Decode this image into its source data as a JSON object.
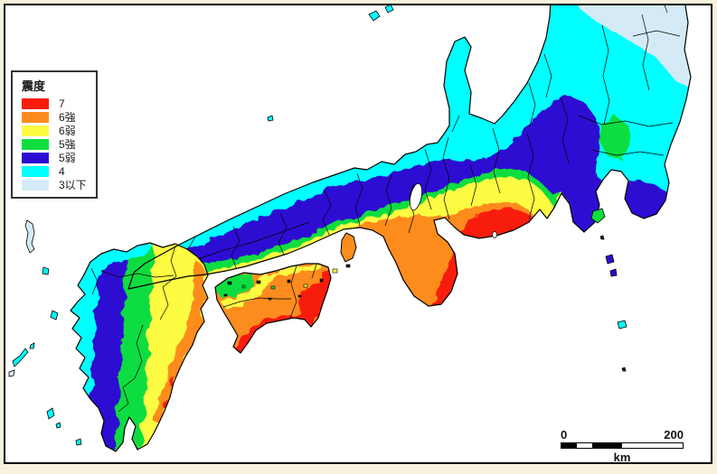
{
  "page": {
    "background_color": "#f8f2dd",
    "frame_border_color": "#000000",
    "sea_color": "#ffffff"
  },
  "legend": {
    "title": "震度",
    "items": [
      {
        "label": "7",
        "color": "#f81b0b"
      },
      {
        "label": "6強",
        "color": "#fd8c1f"
      },
      {
        "label": "6弱",
        "color": "#fdfb42"
      },
      {
        "label": "5強",
        "color": "#0ddd3f"
      },
      {
        "label": "5弱",
        "color": "#2d0cd2"
      },
      {
        "label": "4",
        "color": "#00ffff"
      },
      {
        "label": "3以下",
        "color": "#d4ebf7"
      }
    ]
  },
  "scale_bar": {
    "start": "0",
    "end": "200",
    "unit": "km"
  }
}
